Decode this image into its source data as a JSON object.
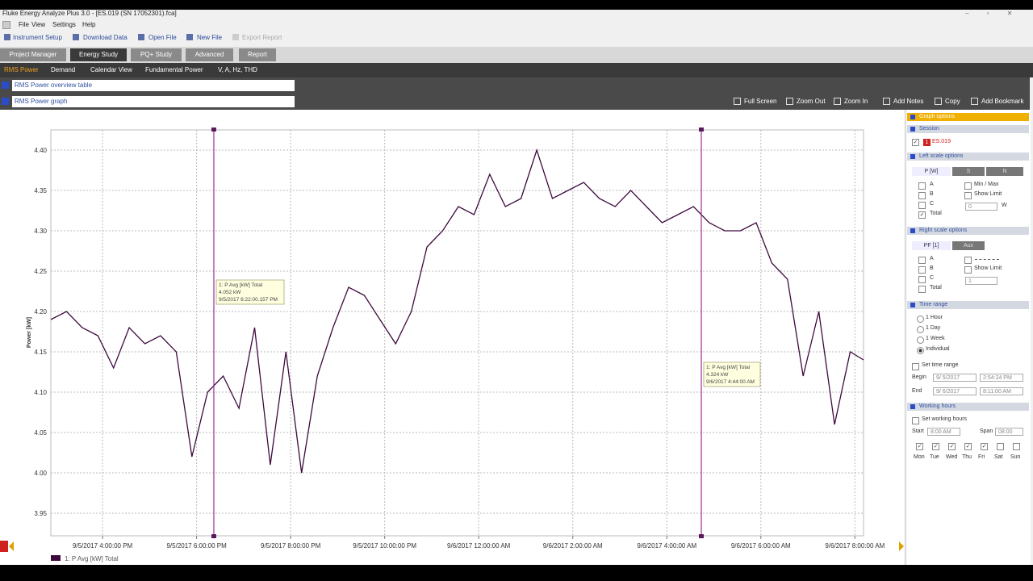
{
  "window": {
    "title": "Fluke Energy Analyze Plus 3.0 - [ES.019 (SN 17052301).fca]"
  },
  "menu": [
    "File",
    "View",
    "Settings",
    "Help"
  ],
  "toolbar": [
    "Instrument Setup",
    "Download Data",
    "Open File",
    "New File",
    "Export Report"
  ],
  "tabs": [
    "Project Manager",
    "Energy Study",
    "PQ+ Study",
    "Advanced",
    "Report"
  ],
  "subtabs": [
    "RMS Power",
    "Demand",
    "Calendar View",
    "Fundamental Power",
    "V, A, Hz, THD"
  ],
  "sections": [
    "RMS Power overview table",
    "RMS Power graph"
  ],
  "graph_tools": [
    "Full Screen",
    "Zoom Out",
    "Zoom In",
    "Add Notes",
    "Copy",
    "Add Bookmark"
  ],
  "options": {
    "header": "Graph options",
    "session": {
      "title": "Session",
      "file": "ES.019",
      "badge": "1",
      "checked": true
    },
    "left": {
      "title": "Left scale options",
      "tabs": [
        "P [W]",
        "S",
        "N"
      ],
      "phases": [
        {
          "label": "A",
          "checked": false
        },
        {
          "label": "B",
          "checked": false
        },
        {
          "label": "C",
          "checked": false
        },
        {
          "label": "Total",
          "checked": true
        }
      ],
      "minmax": {
        "label": "Min / Max",
        "checked": false
      },
      "limit": {
        "label": "Show Limit",
        "checked": false
      },
      "input": "0",
      "unit": "W"
    },
    "right": {
      "title": "Right scale options",
      "tabs": [
        "PF [1]",
        "Aux"
      ],
      "phases": [
        {
          "label": "A",
          "checked": false
        },
        {
          "label": "B",
          "checked": false
        },
        {
          "label": "C",
          "checked": false
        },
        {
          "label": "Total",
          "checked": false
        }
      ],
      "limit": {
        "label": "Show Limit",
        "checked": false
      },
      "input": "1"
    },
    "time": {
      "title": "Time range",
      "options": [
        "1 Hour",
        "1 Day",
        "1 Week",
        "Individual"
      ],
      "selected": 3,
      "set": {
        "label": "Set time range",
        "checked": false
      },
      "begin": {
        "label": "Begin",
        "date": "9/ 5/2017",
        "time": "2:54:24 PM"
      },
      "end": {
        "label": "End",
        "date": "9/ 6/2017",
        "time": "8:11:00 AM"
      }
    },
    "work": {
      "title": "Working hours",
      "set": {
        "label": "Set working hours",
        "checked": false
      },
      "start_label": "Start",
      "start": "8:00 AM",
      "span_label": "Span",
      "span": "08:00",
      "days": [
        {
          "label": "Mon",
          "checked": true
        },
        {
          "label": "Tue",
          "checked": true
        },
        {
          "label": "Wed",
          "checked": true
        },
        {
          "label": "Thu",
          "checked": true
        },
        {
          "label": "Fri",
          "checked": true
        },
        {
          "label": "Sat",
          "checked": false
        },
        {
          "label": "Sun",
          "checked": false
        }
      ]
    }
  },
  "chart_data": {
    "type": "line",
    "y_label": "Power [kW]",
    "grid": true,
    "xlim": [
      "2017-09-05T14:54",
      "2017-09-06T08:11"
    ],
    "xticks": [
      {
        "value": "2017-09-05T16:00",
        "label": "9/5/2017 4:00:00 PM"
      },
      {
        "value": "2017-09-05T18:00",
        "label": "9/5/2017 6:00:00 PM"
      },
      {
        "value": "2017-09-05T20:00",
        "label": "9/5/2017 8:00:00 PM"
      },
      {
        "value": "2017-09-05T22:00",
        "label": "9/5/2017 10:00:00 PM"
      },
      {
        "value": "2017-09-06T00:00",
        "label": "9/6/2017 12:00:00 AM"
      },
      {
        "value": "2017-09-06T02:00",
        "label": "9/6/2017 2:00:00 AM"
      },
      {
        "value": "2017-09-06T04:00",
        "label": "9/6/2017 4:00:00 AM"
      },
      {
        "value": "2017-09-06T06:00",
        "label": "9/6/2017 6:00:00 AM"
      },
      {
        "value": "2017-09-06T08:00",
        "label": "9/6/2017 8:00:00 AM"
      }
    ],
    "ylim": [
      3.922,
      4.425
    ],
    "yticks": [
      3.95,
      {
        "value": 4,
        "label": "4.00"
      },
      4.05,
      {
        "value": 4.1,
        "label": "4.10"
      },
      4.15,
      {
        "value": 4.2,
        "label": "4.20"
      },
      4.25,
      {
        "value": 4.3,
        "label": "4.30"
      },
      4.35,
      {
        "value": 4.4,
        "label": "4.40"
      }
    ],
    "series": [
      {
        "name": "1: P Avg [kW] Total",
        "color": "#3d0a3d",
        "x": [
          "2017-09-05T14:54",
          "2017-09-05T15:14",
          "2017-09-05T15:34",
          "2017-09-05T15:54",
          "2017-09-05T16:14",
          "2017-09-05T16:34",
          "2017-09-05T16:54",
          "2017-09-05T17:14",
          "2017-09-05T17:34",
          "2017-09-05T17:54",
          "2017-09-05T18:14",
          "2017-09-05T18:34",
          "2017-09-05T18:54",
          "2017-09-05T19:14",
          "2017-09-05T19:34",
          "2017-09-05T19:54",
          "2017-09-05T20:14",
          "2017-09-05T20:34",
          "2017-09-05T20:54",
          "2017-09-05T21:14",
          "2017-09-05T21:34",
          "2017-09-05T21:54",
          "2017-09-05T22:14",
          "2017-09-05T22:34",
          "2017-09-05T22:54",
          "2017-09-05T23:14",
          "2017-09-05T23:34",
          "2017-09-05T23:54",
          "2017-09-06T00:14",
          "2017-09-06T00:34",
          "2017-09-06T00:54",
          "2017-09-06T01:14",
          "2017-09-06T01:34",
          "2017-09-06T01:54",
          "2017-09-06T02:14",
          "2017-09-06T02:34",
          "2017-09-06T02:54",
          "2017-09-06T03:14",
          "2017-09-06T03:34",
          "2017-09-06T03:54",
          "2017-09-06T04:14",
          "2017-09-06T04:34",
          "2017-09-06T04:54",
          "2017-09-06T05:14",
          "2017-09-06T05:34",
          "2017-09-06T05:54",
          "2017-09-06T06:14",
          "2017-09-06T06:34",
          "2017-09-06T06:54",
          "2017-09-06T07:14",
          "2017-09-06T07:34",
          "2017-09-06T07:54",
          "2017-09-06T08:11"
        ],
        "values": [
          4.19,
          4.2,
          4.18,
          4.17,
          4.13,
          4.18,
          4.16,
          4.17,
          4.15,
          4.02,
          4.1,
          4.12,
          4.08,
          4.18,
          4.01,
          4.15,
          4.0,
          4.12,
          4.18,
          4.23,
          4.22,
          4.19,
          4.16,
          4.2,
          4.28,
          4.3,
          4.33,
          4.32,
          4.37,
          4.33,
          4.34,
          4.4,
          4.34,
          4.35,
          4.36,
          4.34,
          4.33,
          4.35,
          4.33,
          4.31,
          4.32,
          4.33,
          4.31,
          4.3,
          4.3,
          4.31,
          4.26,
          4.24,
          4.12,
          4.2,
          4.06,
          4.15,
          4.14
        ]
      }
    ],
    "cursors": [
      {
        "x": "2017-09-05T18:22",
        "y": 4.052,
        "title": "1: P Avg [kW] Total",
        "value_label": "4.052 kW",
        "time_label": "9/5/2017 6:22:00.157 PM"
      },
      {
        "x": "2017-09-06T04:44",
        "y": 4.324,
        "title": "1: P Avg [kW] Total",
        "value_label": "4.324 kW",
        "time_label": "9/6/2017 4:44:00 AM"
      }
    ]
  }
}
